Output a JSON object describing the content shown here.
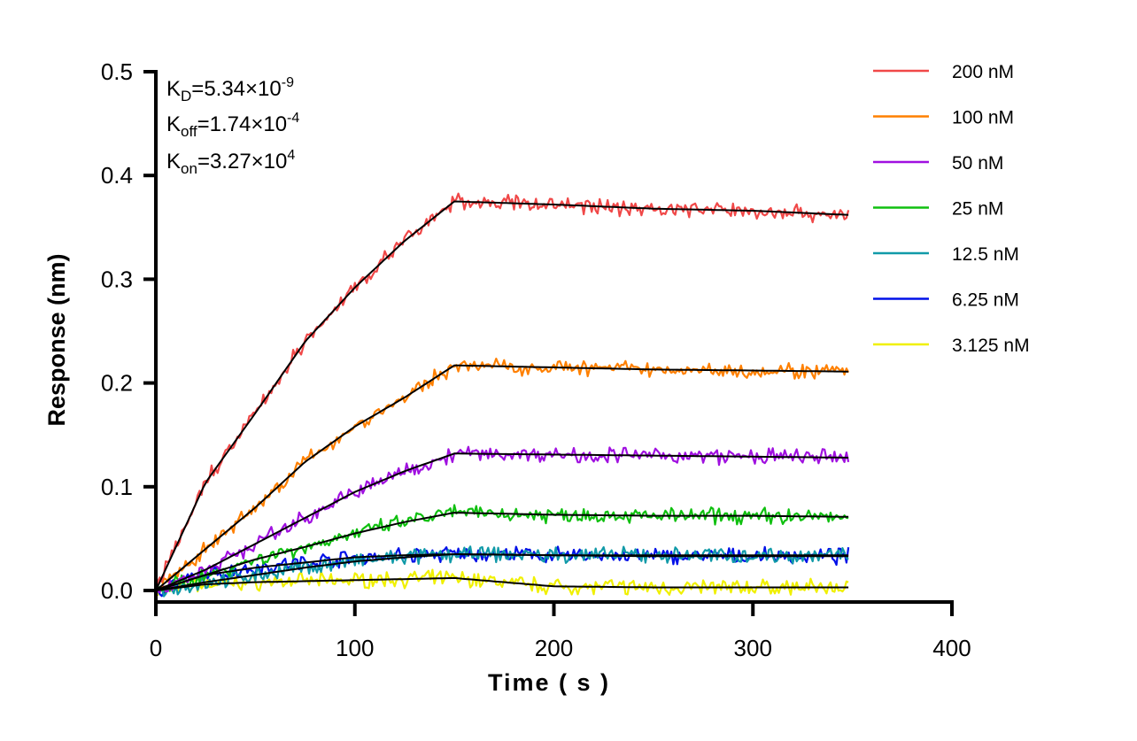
{
  "chart_data": {
    "type": "line",
    "title": "",
    "xlabel": "Time ( s )",
    "ylabel": "Response (nm)",
    "xlim": [
      0,
      400
    ],
    "ylim": [
      0,
      0.5
    ],
    "xticks": [
      "0",
      "100",
      "200",
      "300",
      "400"
    ],
    "yticks": [
      "0.0",
      "0.1",
      "0.2",
      "0.3",
      "0.4",
      "0.5"
    ],
    "grid": false,
    "legend_position": "right",
    "annotations": {
      "kd": {
        "base": "K",
        "sub": "D",
        "text": "=5.34×10",
        "exp": "-9"
      },
      "koff": {
        "base": "K",
        "sub": "off",
        "text": "=1.74×10",
        "exp": "-4"
      },
      "kon": {
        "base": "K",
        "sub": "on",
        "text": "=3.27×10",
        "exp": "4"
      }
    },
    "fit_color": "#000000",
    "x": [
      0,
      25,
      50,
      75,
      100,
      125,
      150,
      200,
      250,
      300,
      348
    ],
    "series": [
      {
        "name": "200 nM",
        "color": "#f04848",
        "values": [
          0,
          0.104,
          0.171,
          0.24,
          0.292,
          0.337,
          0.375,
          0.372,
          0.368,
          0.366,
          0.362
        ]
      },
      {
        "name": "100 nM",
        "color": "#ff8000",
        "values": [
          0,
          0.04,
          0.08,
          0.124,
          0.158,
          0.186,
          0.217,
          0.215,
          0.213,
          0.212,
          0.211
        ]
      },
      {
        "name": "50 nM",
        "color": "#a010e0",
        "values": [
          0,
          0.02,
          0.045,
          0.07,
          0.095,
          0.115,
          0.132,
          0.131,
          0.13,
          0.129,
          0.128
        ]
      },
      {
        "name": "25 nM",
        "color": "#10c010",
        "values": [
          0,
          0.015,
          0.03,
          0.042,
          0.055,
          0.066,
          0.075,
          0.073,
          0.072,
          0.072,
          0.071
        ]
      },
      {
        "name": "12.5 nM",
        "color": "#109aa8",
        "values": [
          0,
          0.008,
          0.015,
          0.022,
          0.028,
          0.032,
          0.035,
          0.034,
          0.034,
          0.034,
          0.034
        ]
      },
      {
        "name": "6.25 nM",
        "color": "#0010e8",
        "values": [
          0,
          0.015,
          0.022,
          0.027,
          0.032,
          0.034,
          0.035,
          0.034,
          0.033,
          0.033,
          0.033
        ]
      },
      {
        "name": "3.125 nM",
        "color": "#f0f000",
        "values": [
          0,
          0.006,
          0.008,
          0.009,
          0.01,
          0.011,
          0.012,
          0.004,
          0.003,
          0.003,
          0.003
        ]
      }
    ]
  }
}
